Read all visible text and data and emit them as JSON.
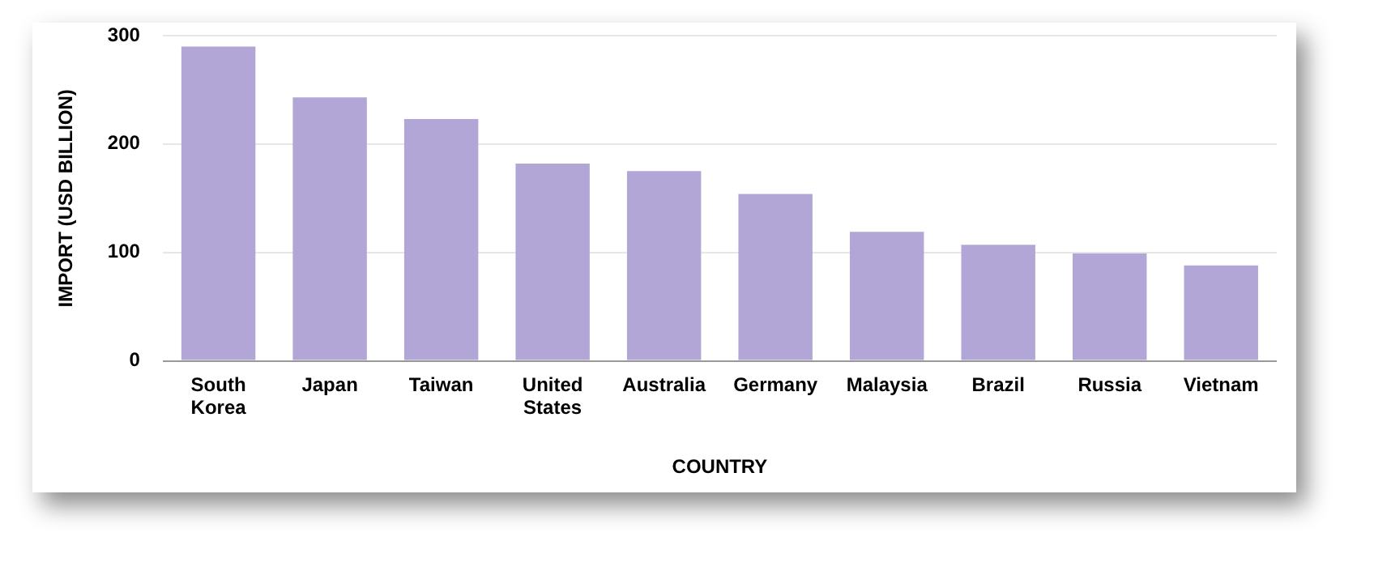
{
  "chart_data": {
    "type": "bar",
    "xlabel": "COUNTRY",
    "ylabel": "IMPORT (USD BILLION)",
    "categories": [
      "South Korea",
      "Japan",
      "Taiwan",
      "United States",
      "Australia",
      "Germany",
      "Malaysia",
      "Brazil",
      "Russia",
      "Vietnam"
    ],
    "values": [
      290,
      243,
      223,
      182,
      175,
      154,
      119,
      107,
      99,
      88
    ],
    "color": "#b2a6d6",
    "ylim": [
      0,
      300
    ],
    "yticks": [
      0,
      100,
      200,
      300
    ],
    "grid": "y",
    "legend": false
  }
}
